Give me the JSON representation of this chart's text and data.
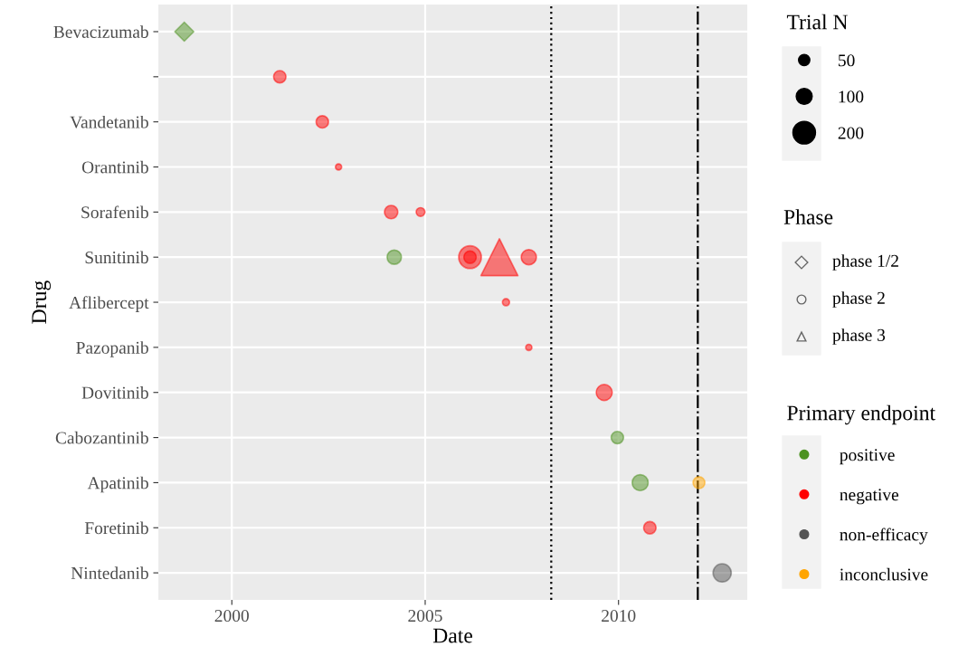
{
  "chart_data": {
    "type": "bubble",
    "orientation": "horizontal",
    "xlabel": "Date",
    "ylabel": "Drug",
    "categories": [
      "Bevacizumab",
      null,
      "Vandetanib",
      "Orantinib",
      "Sorafenib",
      "Sunitinib",
      "Aflibercept",
      "Pazopanib",
      "Dovitinib",
      "Cabozantinib",
      "Apatinib",
      "Foretinib",
      "Nintedanib"
    ],
    "xlim": [
      1998.1,
      2013.33
    ],
    "xticks": [
      2000,
      2005,
      2010
    ],
    "grid": true,
    "series": [
      {
        "name": "positive",
        "color": "#4d9221",
        "marker": "circle",
        "values": [
          null,
          null,
          null,
          null,
          null,
          2004.2,
          null,
          null,
          null,
          2009.97,
          2010.56,
          null,
          null
        ],
        "sizes": [
          null,
          null,
          null,
          null,
          null,
          80,
          null,
          null,
          null,
          60,
          100,
          null,
          null
        ]
      },
      {
        "name": "negative",
        "color": "#ff0000",
        "marker": "circle",
        "values": [
          null,
          2001.24,
          2002.34,
          2002.76,
          2004.12,
          2006.16,
          2007.09,
          2007.68,
          2009.63,
          null,
          null,
          2010.81,
          null
        ],
        "sizes": [
          null,
          60,
          60,
          15,
          70,
          60,
          20,
          15,
          100,
          null,
          null,
          60,
          null
        ]
      },
      {
        "name": "non-efficacy",
        "color": "#555555",
        "marker": "circle",
        "values": [
          null,
          null,
          null,
          null,
          null,
          null,
          null,
          null,
          null,
          null,
          null,
          null,
          2012.68
        ],
        "sizes": [
          null,
          null,
          null,
          null,
          null,
          null,
          null,
          null,
          null,
          null,
          null,
          null,
          130
        ]
      },
      {
        "name": "inconclusive",
        "color": "#ffa500",
        "marker": "circle",
        "values": [
          null,
          null,
          null,
          null,
          null,
          null,
          null,
          null,
          null,
          null,
          2012.08,
          null,
          null
        ],
        "sizes": [
          null,
          null,
          null,
          null,
          null,
          null,
          null,
          null,
          null,
          null,
          55,
          null,
          null
        ]
      },
      {
        "color": "#4d9221",
        "marker": "diamond",
        "values": [
          1998.77,
          null,
          null,
          null,
          null,
          null,
          null,
          null,
          null,
          null,
          null,
          null,
          null
        ],
        "sizes": [
          90,
          null,
          null,
          null,
          null,
          null,
          null,
          null,
          null,
          null,
          null,
          null,
          null
        ]
      },
      {
        "color": "#ff0000",
        "marker": "circle",
        "values": [
          null,
          null,
          null,
          null,
          2004.88,
          2006.16,
          null,
          null,
          null,
          null,
          null,
          null,
          null
        ],
        "sizes": [
          null,
          null,
          null,
          null,
          30,
          200,
          null,
          null,
          null,
          null,
          null,
          null,
          null
        ]
      },
      {
        "color": "#ff0000",
        "marker": "circle",
        "values": [
          null,
          null,
          null,
          null,
          null,
          2007.68,
          null,
          null,
          null,
          null,
          null,
          null,
          null
        ],
        "sizes": [
          null,
          null,
          null,
          null,
          null,
          90,
          null,
          null,
          null,
          null,
          null,
          null,
          null
        ]
      },
      {
        "color": "#ff0000",
        "marker": "triangle",
        "values": [
          null,
          null,
          null,
          null,
          null,
          2006.92,
          null,
          null,
          null,
          null,
          null,
          null,
          null
        ],
        "sizes": [
          null,
          null,
          null,
          null,
          null,
          340,
          null,
          null,
          null,
          null,
          null,
          null,
          null
        ]
      }
    ],
    "size_legend": [
      50,
      100,
      200
    ],
    "legend": "right",
    "legend_title": "Primary endpoint",
    "annotations": [
      "Trial N",
      "Phase",
      "phase 1/2",
      "phase 2",
      "phase 3"
    ],
    "ref_lines": [
      {
        "axis": "x",
        "value": 2008.26,
        "line_style": "dotted",
        "color": "#000000"
      },
      {
        "axis": "x",
        "value": 2012.05,
        "line_style": "dashdot",
        "color": "#000000"
      }
    ]
  }
}
